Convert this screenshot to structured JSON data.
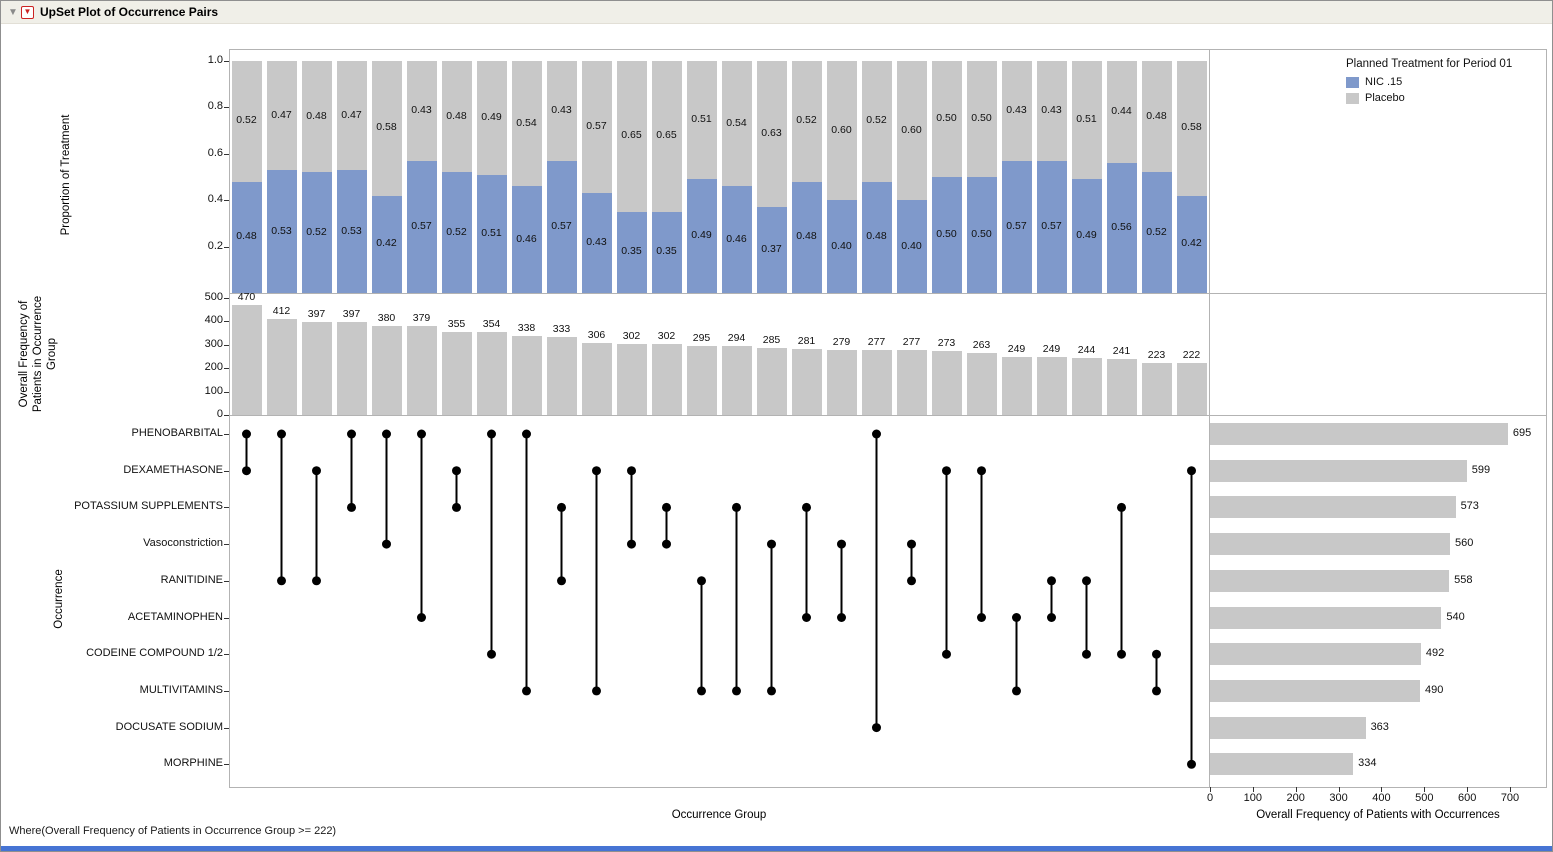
{
  "window": {
    "title": "UpSet Plot of Occurrence Pairs"
  },
  "legend": {
    "title": "Planned Treatment for Period 01",
    "items": [
      {
        "label": "NIC .15",
        "color": "#7f99cb"
      },
      {
        "label": "Placebo",
        "color": "#c8c8c8"
      }
    ]
  },
  "footer": {
    "where_clause": "Where(Overall Frequency of Patients in Occurrence Group >= 222)"
  },
  "chart_data": [
    {
      "type": "bar",
      "name": "treatment-proportion",
      "ylabel": "Proportion of Treatment",
      "ylim": [
        0,
        1
      ],
      "yticks": [
        "1.0",
        "0.8",
        "0.6",
        "0.4",
        "0.2"
      ],
      "stacked": true,
      "legend_title": "Planned Treatment for Period 01",
      "series": [
        {
          "name": "NIC .15",
          "color": "#7f99cb",
          "values": [
            0.48,
            0.53,
            0.52,
            0.53,
            0.42,
            0.57,
            0.52,
            0.51,
            0.46,
            0.57,
            0.43,
            0.35,
            0.35,
            0.49,
            0.46,
            0.37,
            0.48,
            0.4,
            0.48,
            0.4,
            0.5,
            0.5,
            0.57,
            0.57,
            0.49,
            0.56,
            0.52,
            0.42
          ]
        },
        {
          "name": "Placebo",
          "color": "#c8c8c8",
          "values": [
            0.52,
            0.47,
            0.48,
            0.47,
            0.58,
            0.43,
            0.48,
            0.49,
            0.54,
            0.43,
            0.57,
            0.65,
            0.65,
            0.51,
            0.54,
            0.63,
            0.52,
            0.6,
            0.52,
            0.6,
            0.5,
            0.5,
            0.43,
            0.43,
            0.51,
            0.44,
            0.48,
            0.58
          ]
        }
      ]
    },
    {
      "type": "bar",
      "name": "occurrence-group-frequency",
      "ylabel": "Overall Frequency of\nPatients in Occurrence\nGroup",
      "ylim": [
        0,
        500
      ],
      "yticks": [
        "500",
        "400",
        "300",
        "200",
        "100",
        "0"
      ],
      "bar_color": "#c8c8c8",
      "values": [
        470,
        412,
        397,
        397,
        380,
        379,
        355,
        354,
        338,
        333,
        306,
        302,
        302,
        295,
        294,
        285,
        281,
        279,
        277,
        277,
        273,
        263,
        249,
        249,
        244,
        241,
        223,
        222
      ]
    },
    {
      "type": "matrix",
      "name": "occurrence-pairs",
      "ylabel": "Occurrence",
      "xlabel": "Occurrence Group",
      "rows": [
        "PHENOBARBITAL",
        "DEXAMETHASONE",
        "POTASSIUM SUPPLEMENTS",
        "Vasoconstriction",
        "RANITIDINE",
        "ACETAMINOPHEN",
        "CODEINE COMPOUND 1/2",
        "MULTIVITAMINS",
        "DOCUSATE SODIUM",
        "MORPHINE"
      ],
      "pairs": [
        [
          0,
          1
        ],
        [
          0,
          4
        ],
        [
          1,
          4
        ],
        [
          0,
          2
        ],
        [
          0,
          3
        ],
        [
          0,
          5
        ],
        [
          1,
          2
        ],
        [
          0,
          6
        ],
        [
          0,
          7
        ],
        [
          2,
          4
        ],
        [
          1,
          7
        ],
        [
          1,
          3
        ],
        [
          2,
          3
        ],
        [
          4,
          7
        ],
        [
          2,
          7
        ],
        [
          3,
          7
        ],
        [
          2,
          5
        ],
        [
          3,
          5
        ],
        [
          0,
          8
        ],
        [
          3,
          4
        ],
        [
          1,
          6
        ],
        [
          1,
          5
        ],
        [
          5,
          7
        ],
        [
          4,
          5
        ],
        [
          4,
          6
        ],
        [
          2,
          6
        ],
        [
          6,
          7
        ],
        [
          1,
          9
        ]
      ]
    },
    {
      "type": "bar",
      "name": "occurrence-totals",
      "orientation": "horizontal",
      "xlabel": "Overall Frequency of Patients with Occurrences",
      "xlim": [
        0,
        700
      ],
      "xticks": [
        "0",
        "100",
        "200",
        "300",
        "400",
        "500",
        "600",
        "700"
      ],
      "bar_color": "#c8c8c8",
      "categories": [
        "PHENOBARBITAL",
        "DEXAMETHASONE",
        "POTASSIUM SUPPLEMENTS",
        "Vasoconstriction",
        "RANITIDINE",
        "ACETAMINOPHEN",
        "CODEINE COMPOUND 1/2",
        "MULTIVITAMINS",
        "DOCUSATE SODIUM",
        "MORPHINE"
      ],
      "values": [
        695,
        599,
        573,
        560,
        558,
        540,
        492,
        490,
        363,
        334
      ]
    }
  ]
}
